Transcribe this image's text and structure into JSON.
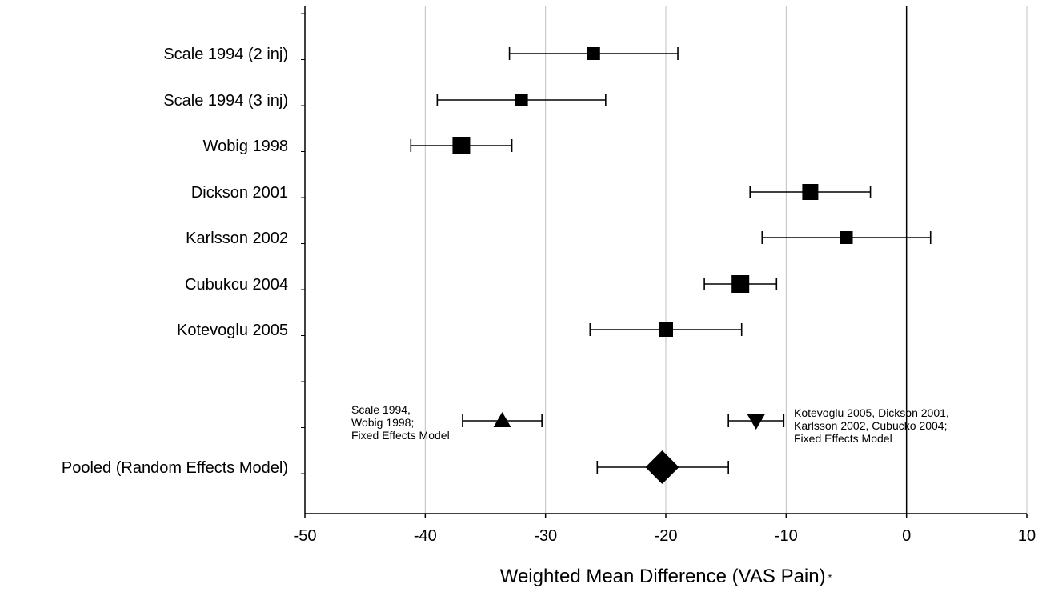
{
  "chart_data": {
    "type": "scatter",
    "subtype": "forest-plot",
    "xlabel": "Weighted Mean Difference (VAS Pain)",
    "xlabel_suffix": "*",
    "xlim": [
      -50,
      10
    ],
    "xticks": [
      -50,
      -40,
      -30,
      -20,
      -10,
      0,
      10
    ],
    "xtick_labels": [
      "-50",
      "-40",
      "-30",
      "-20",
      "-10",
      "0",
      "10"
    ],
    "grid": true,
    "reference_line": 0,
    "studies": [
      {
        "label": "Scale 1994 (2 inj)",
        "estimate": -26,
        "lower": -33,
        "upper": -19,
        "marker": "square",
        "marker_size": 16
      },
      {
        "label": "Scale 1994 (3 inj)",
        "estimate": -32,
        "lower": -39,
        "upper": -25,
        "marker": "square",
        "marker_size": 16
      },
      {
        "label": "Wobig 1998",
        "estimate": -37,
        "lower": -41.2,
        "upper": -32.8,
        "marker": "square",
        "marker_size": 22
      },
      {
        "label": "Dickson 2001",
        "estimate": -8,
        "lower": -13,
        "upper": -3,
        "marker": "square",
        "marker_size": 20
      },
      {
        "label": "Karlsson 2002",
        "estimate": -5,
        "lower": -12,
        "upper": 2,
        "marker": "square",
        "marker_size": 16
      },
      {
        "label": "Cubukcu 2004",
        "estimate": -13.8,
        "lower": -16.8,
        "upper": -10.8,
        "marker": "square",
        "marker_size": 22
      },
      {
        "label": "Kotevoglu 2005",
        "estimate": -20,
        "lower": -26.3,
        "upper": -13.7,
        "marker": "square",
        "marker_size": 18
      }
    ],
    "subgroups": [
      {
        "estimate": -33.6,
        "lower": -36.9,
        "upper": -30.3,
        "marker": "triangle-up",
        "annotation": [
          "Scale 1994,",
          "Wobig 1998;",
          "Fixed Effects Model"
        ]
      },
      {
        "estimate": -12.5,
        "lower": -14.8,
        "upper": -10.2,
        "marker": "triangle-down",
        "annotation": [
          "Kotevoglu 2005, Dickson 2001,",
          "Karlsson 2002, Cubucko 2004;",
          "Fixed Effects Model"
        ]
      }
    ],
    "pooled": {
      "label": "Pooled (Random Effects Model)",
      "estimate": -20.3,
      "lower": -25.7,
      "upper": -14.8,
      "marker": "diamond"
    }
  }
}
